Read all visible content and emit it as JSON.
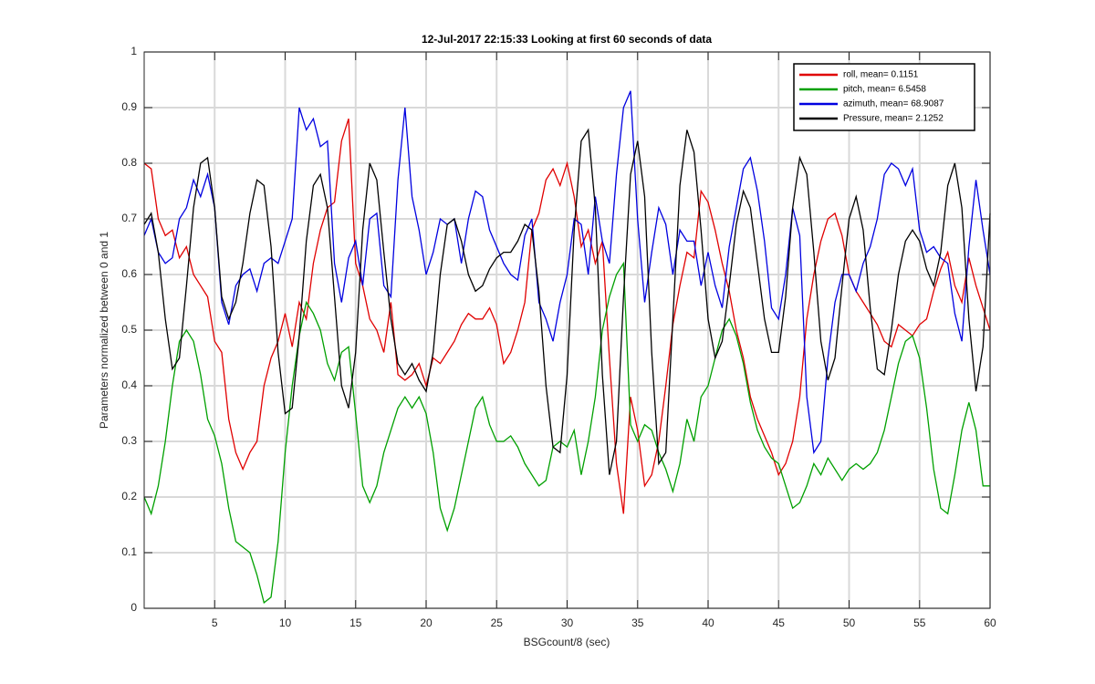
{
  "chart_data": {
    "type": "line",
    "title": "12-Jul-2017 22:15:33 Looking at first 60 seconds of data",
    "xlabel": "BSGcount/8 (sec)",
    "ylabel": "Parameters normalized between 0 and 1",
    "xlim": [
      0,
      60
    ],
    "ylim": [
      0,
      1
    ],
    "xticks": [
      5,
      10,
      15,
      20,
      25,
      30,
      35,
      40,
      45,
      50,
      55,
      60
    ],
    "yticks": [
      0,
      0.1,
      0.2,
      0.3,
      0.4,
      0.5,
      0.6,
      0.7,
      0.8,
      0.9,
      1
    ],
    "grid": true,
    "legend": "northeast",
    "x": [
      0,
      0.5,
      1,
      1.5,
      2,
      2.5,
      3,
      3.5,
      4,
      4.5,
      5,
      5.5,
      6,
      6.5,
      7,
      7.5,
      8,
      8.5,
      9,
      9.5,
      10,
      10.5,
      11,
      11.5,
      12,
      12.5,
      13,
      13.5,
      14,
      14.5,
      15,
      15.5,
      16,
      16.5,
      17,
      17.5,
      18,
      18.5,
      19,
      19.5,
      20,
      20.5,
      21,
      21.5,
      22,
      22.5,
      23,
      23.5,
      24,
      24.5,
      25,
      25.5,
      26,
      26.5,
      27,
      27.5,
      28,
      28.5,
      29,
      29.5,
      30,
      30.5,
      31,
      31.5,
      32,
      32.5,
      33,
      33.5,
      34,
      34.5,
      35,
      35.5,
      36,
      36.5,
      37,
      37.5,
      38,
      38.5,
      39,
      39.5,
      40,
      40.5,
      41,
      41.5,
      42,
      42.5,
      43,
      43.5,
      44,
      44.5,
      45,
      45.5,
      46,
      46.5,
      47,
      47.5,
      48,
      48.5,
      49,
      49.5,
      50,
      50.5,
      51,
      51.5,
      52,
      52.5,
      53,
      53.5,
      54,
      54.5,
      55,
      55.5,
      56,
      56.5,
      57,
      57.5,
      58,
      58.5,
      59,
      59.5,
      60
    ],
    "series": [
      {
        "name": "roll, mean= 0.1151",
        "color": "#e00000",
        "values": [
          0.8,
          0.79,
          0.7,
          0.67,
          0.68,
          0.63,
          0.65,
          0.6,
          0.58,
          0.56,
          0.48,
          0.46,
          0.34,
          0.28,
          0.25,
          0.28,
          0.3,
          0.4,
          0.45,
          0.48,
          0.53,
          0.47,
          0.55,
          0.52,
          0.62,
          0.68,
          0.72,
          0.73,
          0.84,
          0.88,
          0.62,
          0.58,
          0.52,
          0.5,
          0.46,
          0.55,
          0.42,
          0.41,
          0.42,
          0.44,
          0.4,
          0.45,
          0.44,
          0.46,
          0.48,
          0.51,
          0.53,
          0.52,
          0.52,
          0.54,
          0.51,
          0.44,
          0.46,
          0.5,
          0.55,
          0.68,
          0.71,
          0.77,
          0.79,
          0.76,
          0.8,
          0.74,
          0.65,
          0.68,
          0.62,
          0.66,
          0.45,
          0.26,
          0.17,
          0.38,
          0.32,
          0.22,
          0.24,
          0.3,
          0.4,
          0.51,
          0.58,
          0.64,
          0.63,
          0.75,
          0.73,
          0.68,
          0.62,
          0.57,
          0.5,
          0.45,
          0.38,
          0.34,
          0.31,
          0.28,
          0.24,
          0.26,
          0.3,
          0.38,
          0.52,
          0.6,
          0.66,
          0.7,
          0.71,
          0.67,
          0.6,
          0.57,
          0.55,
          0.53,
          0.51,
          0.48,
          0.47,
          0.51,
          0.5,
          0.49,
          0.51,
          0.52,
          0.57,
          0.61,
          0.64,
          0.58,
          0.55,
          0.63,
          0.58,
          0.54,
          0.5
        ]
      },
      {
        "name": "pitch, mean= 6.5458",
        "color": "#00a000",
        "values": [
          0.2,
          0.17,
          0.22,
          0.3,
          0.4,
          0.48,
          0.5,
          0.48,
          0.42,
          0.34,
          0.31,
          0.26,
          0.18,
          0.12,
          0.11,
          0.1,
          0.06,
          0.01,
          0.02,
          0.12,
          0.28,
          0.4,
          0.49,
          0.55,
          0.53,
          0.5,
          0.44,
          0.41,
          0.46,
          0.47,
          0.35,
          0.22,
          0.19,
          0.22,
          0.28,
          0.32,
          0.36,
          0.38,
          0.36,
          0.38,
          0.35,
          0.28,
          0.18,
          0.14,
          0.18,
          0.24,
          0.3,
          0.36,
          0.38,
          0.33,
          0.3,
          0.3,
          0.31,
          0.29,
          0.26,
          0.24,
          0.22,
          0.23,
          0.29,
          0.3,
          0.29,
          0.32,
          0.24,
          0.3,
          0.38,
          0.5,
          0.56,
          0.6,
          0.62,
          0.33,
          0.3,
          0.33,
          0.32,
          0.28,
          0.25,
          0.21,
          0.26,
          0.34,
          0.3,
          0.38,
          0.4,
          0.45,
          0.5,
          0.52,
          0.49,
          0.44,
          0.37,
          0.32,
          0.29,
          0.27,
          0.26,
          0.22,
          0.18,
          0.19,
          0.22,
          0.26,
          0.24,
          0.27,
          0.25,
          0.23,
          0.25,
          0.26,
          0.25,
          0.26,
          0.28,
          0.32,
          0.38,
          0.44,
          0.48,
          0.49,
          0.45,
          0.36,
          0.25,
          0.18,
          0.17,
          0.24,
          0.32,
          0.37,
          0.32,
          0.22,
          0.22
        ]
      },
      {
        "name": "azimuth, mean= 68.9087",
        "color": "#0000e0",
        "values": [
          0.67,
          0.7,
          0.64,
          0.62,
          0.63,
          0.7,
          0.72,
          0.77,
          0.74,
          0.78,
          0.72,
          0.55,
          0.51,
          0.58,
          0.6,
          0.61,
          0.57,
          0.62,
          0.63,
          0.62,
          0.66,
          0.7,
          0.9,
          0.86,
          0.88,
          0.83,
          0.84,
          0.62,
          0.55,
          0.63,
          0.66,
          0.58,
          0.7,
          0.71,
          0.58,
          0.56,
          0.77,
          0.9,
          0.74,
          0.68,
          0.6,
          0.64,
          0.7,
          0.69,
          0.7,
          0.62,
          0.7,
          0.75,
          0.74,
          0.68,
          0.65,
          0.62,
          0.6,
          0.59,
          0.67,
          0.7,
          0.55,
          0.52,
          0.48,
          0.55,
          0.6,
          0.7,
          0.69,
          0.6,
          0.74,
          0.66,
          0.62,
          0.78,
          0.9,
          0.93,
          0.7,
          0.55,
          0.64,
          0.72,
          0.69,
          0.6,
          0.68,
          0.66,
          0.66,
          0.58,
          0.64,
          0.58,
          0.54,
          0.65,
          0.72,
          0.79,
          0.81,
          0.75,
          0.66,
          0.54,
          0.52,
          0.6,
          0.72,
          0.67,
          0.38,
          0.28,
          0.3,
          0.45,
          0.55,
          0.6,
          0.6,
          0.57,
          0.62,
          0.65,
          0.7,
          0.78,
          0.8,
          0.79,
          0.76,
          0.79,
          0.68,
          0.64,
          0.65,
          0.63,
          0.62,
          0.53,
          0.48,
          0.65,
          0.77,
          0.68,
          0.6
        ]
      },
      {
        "name": "Pressure, mean= 2.1252",
        "color": "#000000",
        "values": [
          0.69,
          0.71,
          0.64,
          0.52,
          0.43,
          0.45,
          0.58,
          0.72,
          0.8,
          0.81,
          0.72,
          0.56,
          0.52,
          0.55,
          0.62,
          0.71,
          0.77,
          0.76,
          0.65,
          0.46,
          0.35,
          0.36,
          0.49,
          0.66,
          0.76,
          0.78,
          0.72,
          0.56,
          0.4,
          0.36,
          0.46,
          0.68,
          0.8,
          0.77,
          0.64,
          0.52,
          0.44,
          0.42,
          0.44,
          0.41,
          0.39,
          0.46,
          0.6,
          0.69,
          0.7,
          0.66,
          0.6,
          0.57,
          0.58,
          0.61,
          0.63,
          0.64,
          0.64,
          0.66,
          0.69,
          0.68,
          0.57,
          0.4,
          0.29,
          0.28,
          0.42,
          0.68,
          0.84,
          0.86,
          0.72,
          0.42,
          0.24,
          0.3,
          0.56,
          0.78,
          0.84,
          0.74,
          0.46,
          0.26,
          0.28,
          0.52,
          0.76,
          0.86,
          0.82,
          0.68,
          0.52,
          0.45,
          0.48,
          0.58,
          0.69,
          0.75,
          0.72,
          0.62,
          0.52,
          0.46,
          0.46,
          0.56,
          0.72,
          0.81,
          0.78,
          0.64,
          0.48,
          0.41,
          0.45,
          0.58,
          0.7,
          0.74,
          0.68,
          0.54,
          0.43,
          0.42,
          0.5,
          0.6,
          0.66,
          0.68,
          0.66,
          0.61,
          0.58,
          0.64,
          0.76,
          0.8,
          0.72,
          0.52,
          0.39,
          0.47,
          0.71
        ]
      }
    ]
  }
}
